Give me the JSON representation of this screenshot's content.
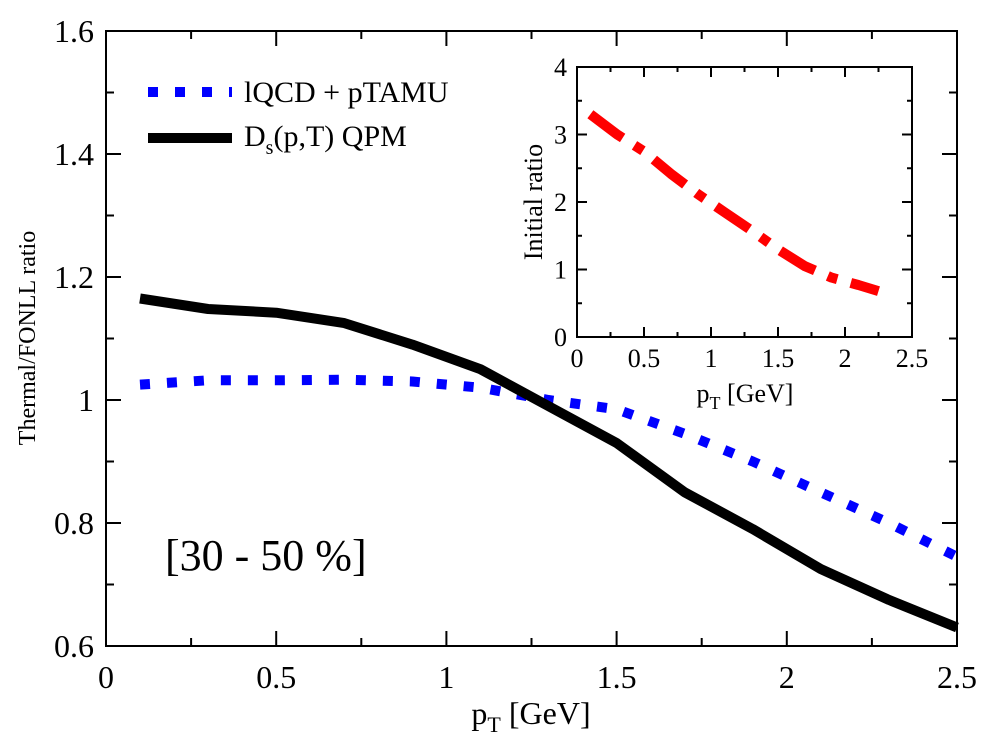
{
  "chart_data": [
    {
      "type": "line",
      "title": "",
      "xlabel": "p",
      "xlabel_sub": "T",
      "xlabel_units": " [GeV]",
      "ylabel": "Thermal/FONLL ratio",
      "xlim": [
        0,
        2.5
      ],
      "ylim": [
        0.6,
        1.6
      ],
      "xticks": [
        0,
        0.5,
        1,
        1.5,
        2,
        2.5
      ],
      "xtick_labels": [
        "0",
        "0.5",
        "1",
        "1.5",
        "2",
        "2.5"
      ],
      "yticks": [
        0.6,
        0.8,
        1.0,
        1.2,
        1.4,
        1.6
      ],
      "ytick_labels": [
        "0.6",
        "0.8",
        "1",
        "1.2",
        "1.4",
        "1.6"
      ],
      "annotation": "[30 - 50 %]",
      "legend_position": "top-left",
      "series": [
        {
          "name": "lQCD + pTAMU",
          "style": "dotted",
          "color": "#0000ff",
          "x": [
            0.1,
            0.3,
            0.5,
            0.7,
            0.9,
            1.1,
            1.3,
            1.5,
            1.7,
            1.9,
            2.1,
            2.3,
            2.5
          ],
          "y": [
            1.025,
            1.032,
            1.032,
            1.033,
            1.03,
            1.02,
            1.0,
            0.985,
            0.945,
            0.9,
            0.85,
            0.8,
            0.745
          ]
        },
        {
          "name_main": "D",
          "name_sub": "s",
          "name_rest": "(p,T) QPM",
          "style": "solid",
          "color": "#000000",
          "x": [
            0.1,
            0.3,
            0.5,
            0.7,
            0.9,
            1.1,
            1.3,
            1.5,
            1.7,
            1.9,
            2.1,
            2.3,
            2.5
          ],
          "y": [
            1.165,
            1.148,
            1.142,
            1.125,
            1.09,
            1.05,
            0.99,
            0.93,
            0.85,
            0.79,
            0.725,
            0.675,
            0.63
          ]
        }
      ]
    },
    {
      "type": "line",
      "title": "",
      "xlabel": "p",
      "xlabel_sub": "T",
      "xlabel_units": " [GeV]",
      "ylabel": "Initial ratio",
      "xlim": [
        0,
        2.5
      ],
      "ylim": [
        0,
        4
      ],
      "xticks": [
        0,
        0.5,
        1,
        1.5,
        2,
        2.5
      ],
      "xtick_labels": [
        "0",
        "0.5",
        "1",
        "1.5",
        "2",
        "2.5"
      ],
      "yticks": [
        0,
        1,
        2,
        3,
        4
      ],
      "ytick_labels": [
        "0",
        "1",
        "2",
        "3",
        "4"
      ],
      "series": [
        {
          "name": "Initial ratio",
          "style": "dash-dot",
          "color": "#ff0000",
          "x": [
            0.1,
            0.3,
            0.5,
            0.7,
            0.9,
            1.1,
            1.3,
            1.5,
            1.7,
            1.9,
            2.1,
            2.25
          ],
          "y": [
            3.3,
            3.0,
            2.75,
            2.42,
            2.12,
            1.85,
            1.58,
            1.3,
            1.05,
            0.88,
            0.77,
            0.68
          ]
        }
      ]
    }
  ]
}
